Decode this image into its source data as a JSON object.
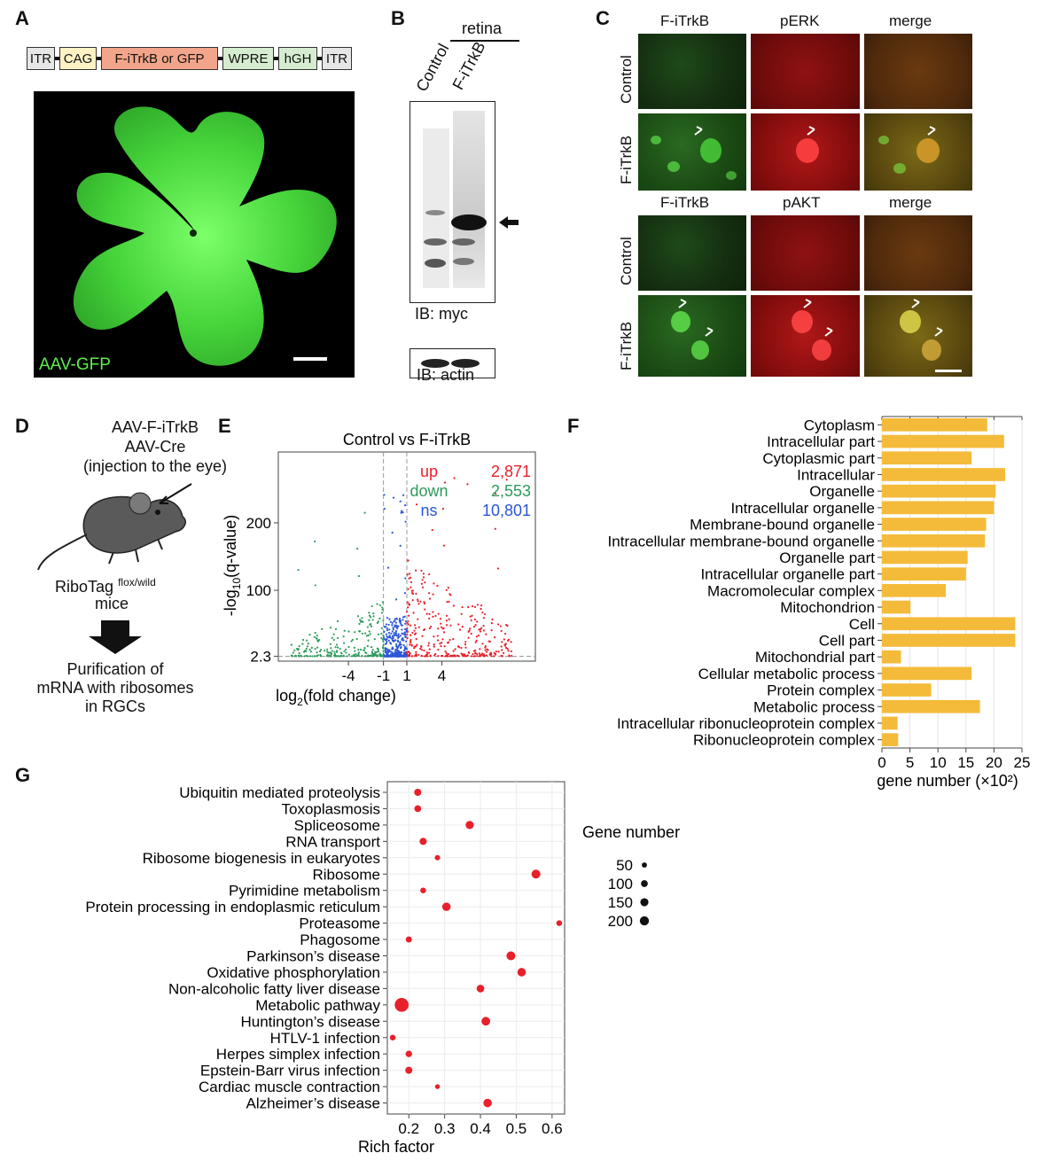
{
  "panels": {
    "a": {
      "letter": "A",
      "construct": [
        {
          "label": "ITR",
          "color": "#e6e6e6"
        },
        {
          "label": "CAG",
          "color": "#fff2c4"
        },
        {
          "label": "F-iTrkB or GFP",
          "color": "#f2a58a"
        },
        {
          "label": "WPRE",
          "color": "#d6ecd0"
        },
        {
          "label": "hGH",
          "color": "#d6ecd0"
        },
        {
          "label": "ITR",
          "color": "#e6e6e6"
        }
      ],
      "image_label": "AAV-GFP"
    },
    "b": {
      "letter": "B",
      "group": "retina",
      "lanes": [
        "Control",
        "F-iTrkB"
      ],
      "blot1": "IB: myc",
      "blot2": "IB: actin"
    },
    "c": {
      "letter": "C",
      "top_cols": [
        "F-iTrkB",
        "pERK",
        "merge"
      ],
      "bottom_cols": [
        "F-iTrkB",
        "pAKT",
        "merge"
      ],
      "rows": [
        "Control",
        "F-iTrkB"
      ]
    },
    "d": {
      "letter": "D",
      "line1": "AAV-F-iTrkB",
      "line2": "AAV-Cre",
      "line3": "(injection to the eye)",
      "mouse_name": "RiboTag",
      "mouse_sup": "flox/wild",
      "mouse_line2": "mice",
      "result1": "Purification of",
      "result2": "mRNA with ribosomes",
      "result3": "in RGCs"
    },
    "e": {
      "letter": "E"
    },
    "f": {
      "letter": "F"
    },
    "g": {
      "letter": "G"
    }
  },
  "chart_data": [
    {
      "id": "volcano",
      "type": "scatter",
      "title": "Control vs F-iTrkB",
      "xlabel": "log2(fold change)",
      "ylabel": "-log10(q-value)",
      "x_ticks": [
        -4,
        -1,
        1,
        4
      ],
      "y_ticks": [
        2.3,
        100,
        200
      ],
      "xlim": [
        -10,
        12
      ],
      "ylim": [
        -5,
        305
      ],
      "thresholds": {
        "x": [
          -1,
          1
        ],
        "y": 2.3
      },
      "legend": [
        {
          "name": "up",
          "count": "2,871",
          "color": "#e8202a"
        },
        {
          "name": "down",
          "count": "2,553",
          "color": "#2e9a5a"
        },
        {
          "name": "ns",
          "count": "10,801",
          "color": "#2a56d6"
        }
      ]
    },
    {
      "id": "go-bar",
      "type": "bar",
      "orientation": "horizontal",
      "xlabel": "gene number (×10²)",
      "x_ticks": [
        0,
        5,
        10,
        15,
        20,
        25
      ],
      "xlim": [
        0,
        25
      ],
      "bar_color": "#f4bb3a",
      "categories": [
        "Cytoplasm",
        "Intracellular part",
        "Cytoplasmic part",
        "Intracellular",
        "Organelle",
        "Intracellular organelle",
        "Membrane-bound organelle",
        "Intracellular membrane-bound organelle",
        "Organelle part",
        "Intracellular organelle part",
        "Macromolecular complex",
        "Mitochondrion",
        "Cell",
        "Cell part",
        "Mitochondrial part",
        "Cellular metabolic process",
        "Protein complex",
        "Metabolic process",
        "Intracellular ribonucleoprotein complex",
        "Ribonucleoprotein complex"
      ],
      "values": [
        18.8,
        21.8,
        16,
        22,
        20.3,
        20,
        18.6,
        18.4,
        15.3,
        15,
        11.4,
        5.1,
        23.8,
        23.8,
        3.4,
        16,
        8.8,
        17.5,
        2.8,
        2.9
      ]
    },
    {
      "id": "kegg-bubble",
      "type": "scatter",
      "xlabel": "Rich factor",
      "x_ticks": [
        0.2,
        0.3,
        0.4,
        0.5,
        0.6
      ],
      "xlim": [
        0.14,
        0.635
      ],
      "point_color": "#e8202a",
      "legend_title": "Gene number",
      "size_legend": [
        50,
        100,
        150,
        200
      ],
      "categories": [
        "Ubiquitin mediated proteolysis",
        "Toxoplasmosis",
        "Spliceosome",
        "RNA transport",
        "Ribosome biogenesis in eukaryotes",
        "Ribosome",
        "Pyrimidine metabolism",
        "Protein processing in endoplasmic reticulum",
        "Proteasome",
        "Phagosome",
        "Parkinson’s disease",
        "Oxidative phosphorylation",
        "Non-alcoholic fatty liver disease",
        "Metabolic pathway",
        "Huntington’s disease",
        "HTLV-1 infection",
        "Herpes simplex infection",
        "Epstein-Barr virus infection",
        "Cardiac muscle contraction",
        "Alzheimer’s disease"
      ],
      "rich_factor": [
        0.225,
        0.225,
        0.37,
        0.24,
        0.28,
        0.555,
        0.24,
        0.305,
        0.62,
        0.2,
        0.485,
        0.515,
        0.4,
        0.18,
        0.415,
        0.155,
        0.2,
        0.2,
        0.28,
        0.42
      ],
      "gene_number": [
        45,
        40,
        65,
        45,
        20,
        80,
        25,
        70,
        25,
        30,
        80,
        70,
        55,
        230,
        75,
        25,
        35,
        45,
        15,
        70
      ]
    }
  ]
}
